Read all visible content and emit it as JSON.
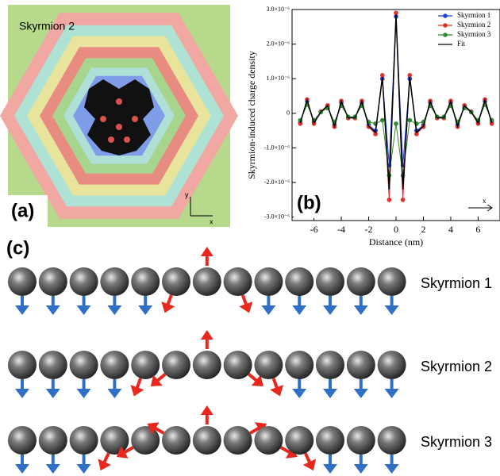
{
  "panel_a": {
    "title": "Skyrmion 2",
    "label": "(a)",
    "axis_y": "y",
    "axis_x": "x"
  },
  "chart_data": {
    "type": "line",
    "panel_label": "(b)",
    "direction_label": "x",
    "xlabel": "Distance (nm)",
    "ylabel": "Skyrmion-induced charge density",
    "x": [
      -7,
      -6.5,
      -6,
      -5.5,
      -5,
      -4.5,
      -4,
      -3.5,
      -3,
      -2.5,
      -2,
      -1.5,
      -1,
      -0.5,
      0,
      0.5,
      1,
      1.5,
      2,
      2.5,
      3,
      3.5,
      4,
      4.5,
      5,
      5.5,
      6,
      6.5,
      7
    ],
    "xlim": [
      -7.6,
      7.6
    ],
    "xticks": [
      -6,
      -4,
      -2,
      0,
      2,
      4,
      6
    ],
    "ylim": [
      -3.1e-06,
      3e-06
    ],
    "yticks": [
      {
        "value": 3e-06,
        "label": "3.0×10⁻⁶"
      },
      {
        "value": 2e-06,
        "label": "2.0×10⁻⁶"
      },
      {
        "value": 1e-06,
        "label": "1.0×10⁻⁶"
      },
      0,
      {
        "value": -1e-06,
        "label": "-1.0×10⁻⁶"
      },
      {
        "value": -2e-06,
        "label": "-2.0×10⁻⁶"
      },
      {
        "value": -3e-06,
        "label": "-3.0×10⁻⁶"
      }
    ],
    "legend": "upper right",
    "series": [
      {
        "name": "Skyrmion 1",
        "color": "#1f3fd8",
        "markers": true,
        "values": [
          -2.6e-07,
          3.5e-07,
          -2.6e-07,
          4e-08,
          2e-07,
          -3.4e-07,
          3.1e-07,
          -1.2e-07,
          -1.2e-07,
          3.1e-07,
          -3.4e-07,
          -5e-07,
          1e-06,
          -1.5e-06,
          2.8e-06,
          -1.5e-06,
          1e-06,
          -5e-07,
          -3.4e-07,
          3.1e-07,
          -1.2e-07,
          -1.2e-07,
          3.1e-07,
          -3.4e-07,
          2e-07,
          4e-08,
          -2.6e-07,
          3.5e-07,
          -2.6e-07
        ]
      },
      {
        "name": "Skyrmion 2",
        "color": "#e0302a",
        "markers": true,
        "values": [
          -3e-07,
          4e-07,
          -3e-07,
          5e-08,
          2.3e-07,
          -3.9e-07,
          3.6e-07,
          -1.4e-07,
          -1.4e-07,
          3.6e-07,
          -3.9e-07,
          -6e-07,
          1.1e-06,
          -2.5e-06,
          2.9e-06,
          -2.5e-06,
          1.1e-06,
          -6e-07,
          -3.9e-07,
          3.6e-07,
          -1.4e-07,
          -1.4e-07,
          3.6e-07,
          -3.9e-07,
          2.3e-07,
          5e-08,
          -3e-07,
          4e-07,
          -3e-07
        ]
      },
      {
        "name": "Skyrmion 3",
        "color": "#2e8b2e",
        "markers": true,
        "values": [
          -2e-07,
          2.5e-07,
          -2e-07,
          3e-08,
          1.5e-07,
          -2.5e-07,
          2.2e-07,
          -1e-07,
          -1e-07,
          2.2e-07,
          -2.5e-07,
          -3e-07,
          -2e-07,
          -1.8e-06,
          -3e-07,
          -1.8e-06,
          -2e-07,
          -3e-07,
          -2.5e-07,
          2.2e-07,
          -1e-07,
          -1e-07,
          2.2e-07,
          -2.5e-07,
          1.5e-07,
          3e-08,
          -2e-07,
          2.5e-07,
          -2e-07
        ]
      },
      {
        "name": "Fit",
        "color": "#000000",
        "markers": false,
        "values": [
          -2.8e-07,
          3.8e-07,
          -2.8e-07,
          4e-08,
          2.2e-07,
          -3.7e-07,
          3.4e-07,
          -1.3e-07,
          -1.3e-07,
          3.4e-07,
          -3.7e-07,
          -5.5e-07,
          1.05e-06,
          -2.2e-06,
          2.85e-06,
          -2.2e-06,
          1.05e-06,
          -5.5e-07,
          -3.7e-07,
          3.4e-07,
          -1.3e-07,
          -1.3e-07,
          3.4e-07,
          -3.7e-07,
          2.2e-07,
          4e-08,
          -2.8e-07,
          3.8e-07,
          -2.8e-07
        ]
      }
    ]
  },
  "panel_c": {
    "label": "(c)",
    "rows": [
      "Skyrmion 1",
      "Skyrmion 2",
      "Skyrmion 3"
    ]
  }
}
